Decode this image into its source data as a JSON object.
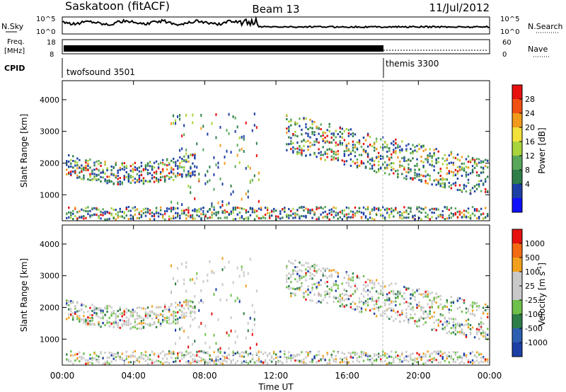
{
  "header": {
    "station": "Saskatoon (fitACF)",
    "beam": "Beam 13",
    "date": "11/Jul/2012"
  },
  "top_panels": {
    "nsky_label": "N.Sky",
    "nsearch_label": "N.Search",
    "nsky_ticks": [
      "10^5",
      "10^0"
    ],
    "nsearch_ticks": [
      "10^5",
      "10^0"
    ],
    "freq_label": "Freq.",
    "freq_unit": "[MHz]",
    "freq_ticks": [
      "18",
      "8"
    ],
    "nave_label": "Nave",
    "nave_ticks": [
      "60",
      "0"
    ],
    "cpid_label": "CPID",
    "cpid_segments": [
      {
        "name": "twofsound 3501",
        "start_hour": 0
      },
      {
        "name": "themis 3300",
        "start_hour": 18
      }
    ]
  },
  "chart_data": [
    {
      "type": "heatmap",
      "panel": "power",
      "ylabel": "Slant Range [km]",
      "ylim": [
        180,
        4600
      ],
      "yticks": [
        "4000",
        "3000",
        "2000",
        "1000"
      ],
      "colorbar": {
        "label": "Power [dB]",
        "ticks": [
          "28",
          "24",
          "20",
          "16",
          "12",
          "8",
          "4"
        ],
        "colors": [
          "#1010ff",
          "#1c3fa6",
          "#2e7e4a",
          "#58a75a",
          "#a8d43c",
          "#f2e13a",
          "#f29a1c",
          "#f24f12",
          "#e6100f"
        ]
      },
      "features": [
        {
          "desc": "scatter band",
          "start_hour": 0,
          "end_hour": 7.5,
          "range_km": [
            1500,
            2400
          ]
        },
        {
          "desc": "near-range echoes",
          "start_hour": 0,
          "end_hour": 24,
          "range_km": [
            200,
            600
          ]
        },
        {
          "desc": "evening band",
          "start_hour": 12,
          "end_hour": 24,
          "range_km": [
            1200,
            2800
          ]
        }
      ]
    },
    {
      "type": "heatmap",
      "panel": "velocity",
      "ylabel": "Slant Range [km]",
      "ylim": [
        180,
        4600
      ],
      "yticks": [
        "4000",
        "3000",
        "2000",
        "1000"
      ],
      "colorbar": {
        "label": "Velocity [m s",
        "label_sup": "-1",
        "label_end": "]",
        "ticks": [
          "1000",
          "500",
          "100",
          "25",
          "-25",
          "-100",
          "-500",
          "-1000"
        ],
        "colors": [
          "#1c3fa6",
          "#2d5fb0",
          "#2e7e4a",
          "#6fc04a",
          "#c9c9c9",
          "#c9c9c9",
          "#f2a01c",
          "#f26a12",
          "#e6100f"
        ]
      }
    }
  ],
  "xaxis": {
    "label": "Time UT",
    "ticks": [
      "00:00",
      "04:00",
      "08:00",
      "12:00",
      "16:00",
      "20:00",
      "00:00"
    ],
    "range_hours": [
      0,
      24
    ]
  }
}
